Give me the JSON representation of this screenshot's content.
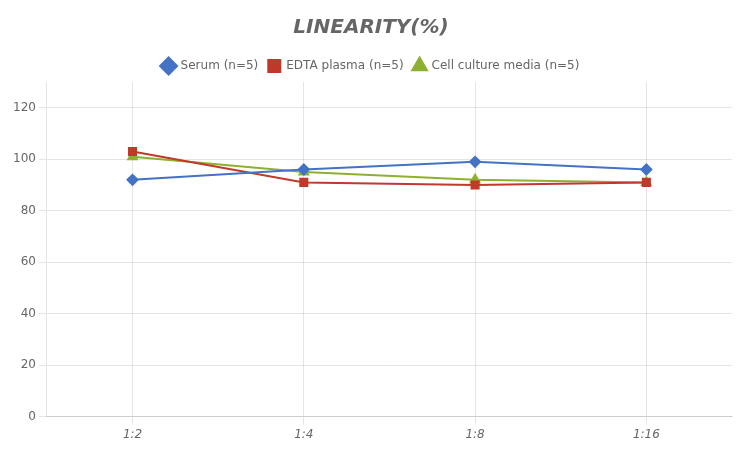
{
  "chart_data": {
    "type": "line",
    "title": "LINEARITY(%)",
    "categories": [
      "1:2",
      "1:4",
      "1:8",
      "1:16"
    ],
    "series": [
      {
        "name": "Serum (n=5)",
        "color": "#4472C4",
        "marker": "diamond",
        "values": [
          92,
          96,
          99,
          96
        ]
      },
      {
        "name": "EDTA plasma (n=5)",
        "color": "#C0392B",
        "marker": "square",
        "values": [
          103,
          91,
          90,
          91
        ]
      },
      {
        "name": "Cell culture media (n=5)",
        "color": "#8DB030",
        "marker": "triangle",
        "values": [
          101,
          95,
          92,
          91
        ]
      }
    ],
    "ylim": [
      0,
      130
    ],
    "yticks": [
      0,
      20,
      40,
      60,
      80,
      100,
      120
    ],
    "grid": true,
    "legend": "top"
  }
}
